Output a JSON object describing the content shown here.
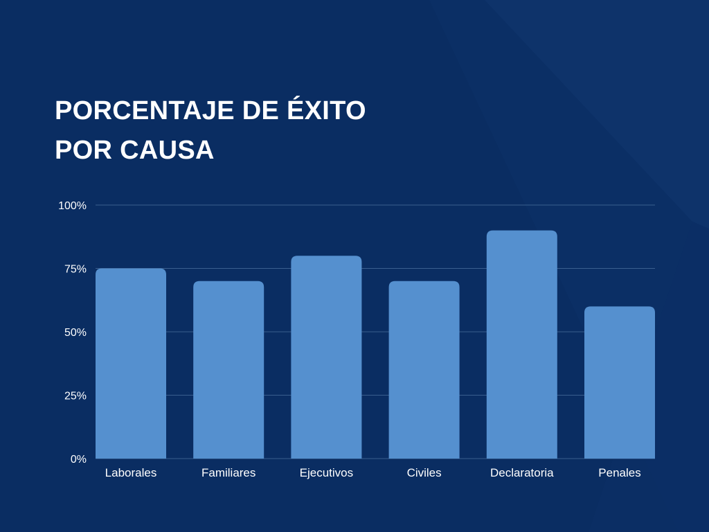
{
  "title_lines": [
    "PORCENTAJE DE ÉXITO",
    "POR CAUSA"
  ],
  "colors": {
    "background": "#0a2d62",
    "bar": "#5590cf",
    "gridline": "#3a5f8f",
    "text": "#ffffff"
  },
  "chart_data": {
    "type": "bar",
    "title": "PORCENTAJE DE ÉXITO POR CAUSA",
    "xlabel": "",
    "ylabel": "",
    "categories": [
      "Laborales",
      "Familiares",
      "Ejecutivos",
      "Civiles",
      "Declaratoria",
      "Penales"
    ],
    "values": [
      75,
      70,
      80,
      70,
      90,
      60
    ],
    "unit": "%",
    "ylim": [
      0,
      100
    ],
    "yticks": [
      0,
      25,
      50,
      75,
      100
    ],
    "ytick_labels": [
      "0%",
      "25%",
      "50%",
      "75%",
      "100%"
    ],
    "grid": true,
    "legend": "none"
  }
}
